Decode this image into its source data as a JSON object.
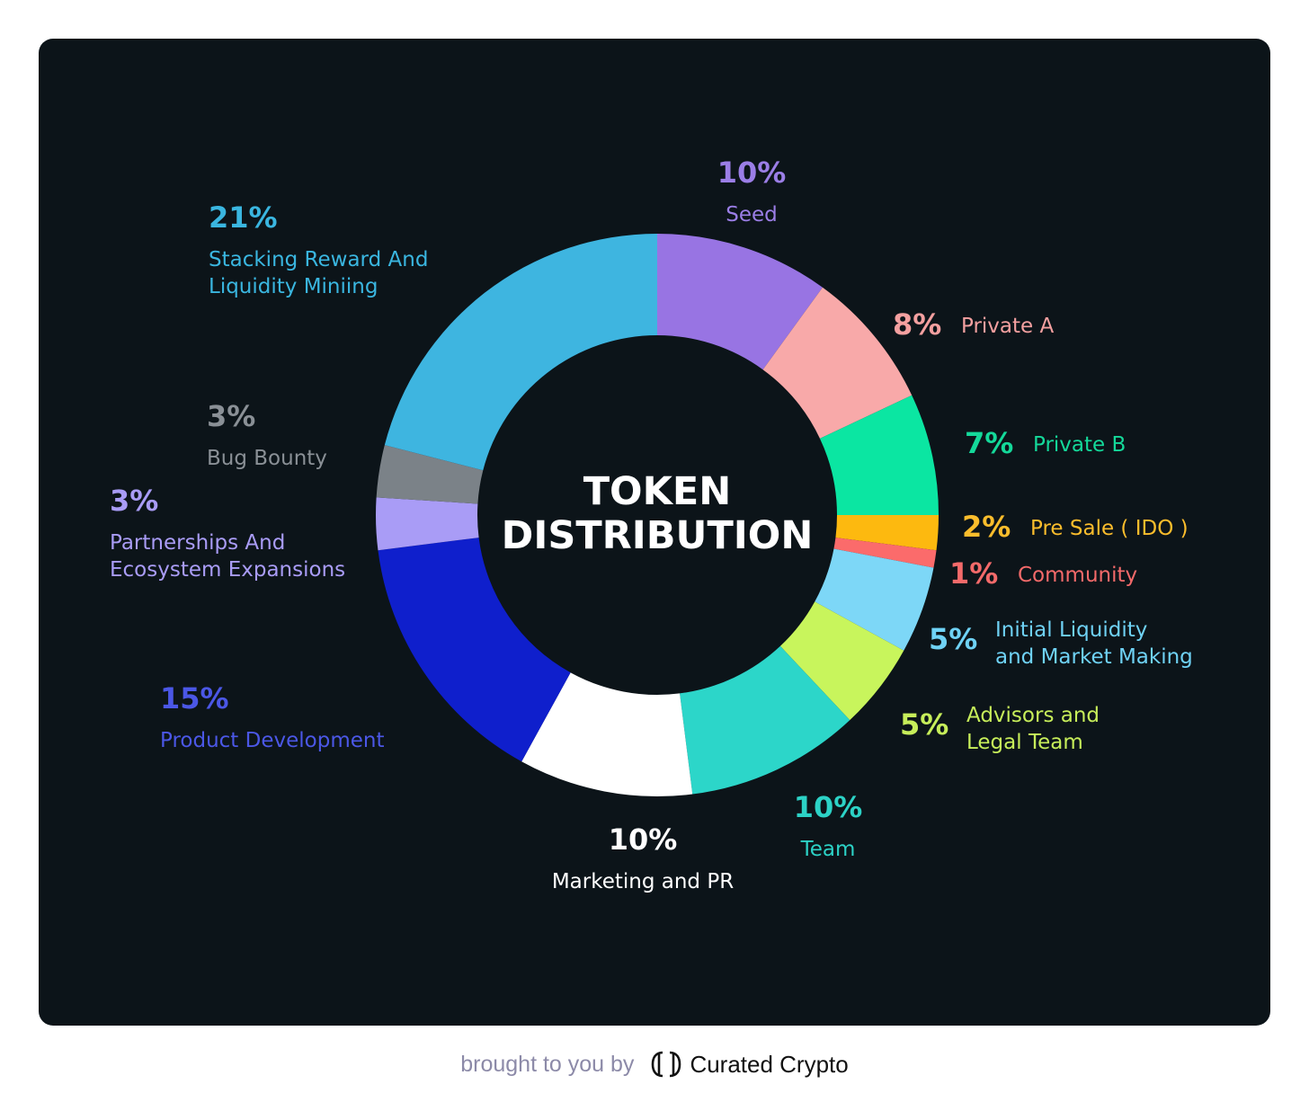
{
  "chart_data": {
    "type": "pie",
    "title_lines": [
      "TOKEN",
      "DISTRIBUTION"
    ],
    "slices": [
      {
        "percent": 10,
        "pct_label": "10%",
        "label_lines": [
          "Seed"
        ],
        "color": "#9874e3",
        "label_color": "#9b7ee6"
      },
      {
        "percent": 8,
        "pct_label": "8%",
        "label_lines": [
          "Private A"
        ],
        "color": "#f8a9a9",
        "label_color": "#f4a0a0"
      },
      {
        "percent": 7,
        "pct_label": "7%",
        "label_lines": [
          "Private B"
        ],
        "color": "#0be6a2",
        "label_color": "#14d99a"
      },
      {
        "percent": 2,
        "pct_label": "2%",
        "label_lines": [
          "Pre Sale ( IDO )"
        ],
        "color": "#fdb90f",
        "label_color": "#fbbd2c"
      },
      {
        "percent": 1,
        "pct_label": "1%",
        "label_lines": [
          "Community"
        ],
        "color": "#fb6b6b",
        "label_color": "#f46a6a"
      },
      {
        "percent": 5,
        "pct_label": "5%",
        "label_lines": [
          "Initial Liquidity",
          "and Market Making"
        ],
        "color": "#7dd7f7",
        "label_color": "#6fd2f5"
      },
      {
        "percent": 5,
        "pct_label": "5%",
        "label_lines": [
          "Advisors and",
          "Legal Team"
        ],
        "color": "#c8f55c",
        "label_color": "#c7ee5a"
      },
      {
        "percent": 10,
        "pct_label": "10%",
        "label_lines": [
          "Team"
        ],
        "color": "#2cd6c9",
        "label_color": "#2cd2c6"
      },
      {
        "percent": 10,
        "pct_label": "10%",
        "label_lines": [
          "Marketing and PR"
        ],
        "color": "#ffffff",
        "label_color": "#ffffff"
      },
      {
        "percent": 15,
        "pct_label": "15%",
        "label_lines": [
          "Product Development"
        ],
        "color": "#0f1fcc",
        "label_color": "#4b57e6"
      },
      {
        "percent": 3,
        "pct_label": "3%",
        "label_lines": [
          "Partnerships And",
          "Ecosystem Expansions"
        ],
        "color": "#a99cf6",
        "label_color": "#a99cf6"
      },
      {
        "percent": 3,
        "pct_label": "3%",
        "label_lines": [
          "Bug Bounty"
        ],
        "color": "#7b8288",
        "label_color": "#8a9096"
      },
      {
        "percent": 21,
        "pct_label": "21%",
        "label_lines": [
          "Stacking Reward And",
          "Liquidity Miniing"
        ],
        "color": "#3eb5e0",
        "label_color": "#3ab6e0"
      }
    ]
  },
  "footer": {
    "brought_by": "brought to you by",
    "brand": "Curated Crypto",
    "logo_icon": "curated-crypto-logo-icon"
  }
}
